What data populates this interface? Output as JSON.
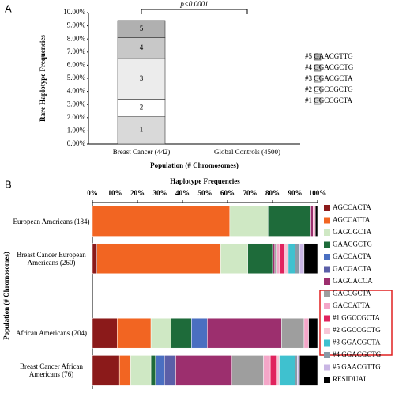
{
  "chart_data": [
    {
      "type": "stacked_bar",
      "panel": "A",
      "ylabel": "Rare Haplotype Frequencies",
      "xlabel": "Population (# Chromosomes)",
      "annotation": "p<0.0001",
      "categories": [
        "Breast Cancer (442)",
        "Global Controls (4500)"
      ],
      "ylim": [
        0,
        10
      ],
      "yticks": [
        {
          "value": 0,
          "label": "0.00%"
        },
        {
          "value": 1,
          "label": "1.00%"
        },
        {
          "value": 2,
          "label": "2.00%"
        },
        {
          "value": 3,
          "label": "3.00%"
        },
        {
          "value": 4,
          "label": "4.00%"
        },
        {
          "value": 5,
          "label": "5.00%"
        },
        {
          "value": 6,
          "label": "6.00%"
        },
        {
          "value": 7,
          "label": "7.00%"
        },
        {
          "value": 8,
          "label": "8.00%"
        },
        {
          "value": 9,
          "label": "9.00%"
        },
        {
          "value": 10,
          "label": "10.00%"
        }
      ],
      "series": [
        {
          "name": "#1 GGCCGCTA",
          "label": "1",
          "color": "#d9d9d9",
          "values": [
            2.1,
            0
          ]
        },
        {
          "name": "#2 GGCCGCTG",
          "label": "2",
          "color": "#ffffff",
          "values": [
            1.3,
            0
          ]
        },
        {
          "name": "#3 GGACGCTA",
          "label": "3",
          "color": "#ececec",
          "values": [
            3.1,
            0
          ]
        },
        {
          "name": "#4 GGACGCTG",
          "label": "4",
          "color": "#c8c8c8",
          "values": [
            1.6,
            0
          ]
        },
        {
          "name": "#5 GAACGTTG",
          "label": "5",
          "color": "#b0b0b0",
          "values": [
            1.3,
            0
          ]
        }
      ]
    },
    {
      "type": "stacked_hbar",
      "panel": "B",
      "title": "Haplotype Frequencies",
      "ylabel": "Population (# Chromosomes)",
      "categories": [
        "European Americans (184)",
        "Breast Cancer European Americans (260)",
        null,
        "African Americans (204)",
        "Breast Cancer African Americans (76)"
      ],
      "xlim": [
        0,
        100
      ],
      "xticks": [
        {
          "value": 0,
          "label": "0%"
        },
        {
          "value": 10,
          "label": "10%"
        },
        {
          "value": 20,
          "label": "20%"
        },
        {
          "value": 30,
          "label": "30%"
        },
        {
          "value": 40,
          "label": "40%"
        },
        {
          "value": 50,
          "label": "50%"
        },
        {
          "value": 60,
          "label": "60%"
        },
        {
          "value": 70,
          "label": "70%"
        },
        {
          "value": 80,
          "label": "80%"
        },
        {
          "value": 90,
          "label": "90%"
        },
        {
          "value": 100,
          "label": "100%"
        }
      ],
      "series": [
        {
          "name": "AGCCACTA",
          "color": "#8b1a1a",
          "values": [
            0,
            2,
            null,
            11,
            12
          ]
        },
        {
          "name": "AGCCATTA",
          "color": "#f26522",
          "values": [
            61,
            55,
            null,
            15,
            5
          ]
        },
        {
          "name": "GAGCGCTA",
          "color": "#cfe8c4",
          "values": [
            17,
            12,
            null,
            9,
            9
          ]
        },
        {
          "name": "GAACGCTG",
          "color": "#1e6b3a",
          "values": [
            19,
            11,
            null,
            9,
            2
          ]
        },
        {
          "name": "GACCACTA",
          "color": "#4a6fc1",
          "values": [
            0,
            0,
            null,
            7,
            4
          ]
        },
        {
          "name": "GACGACTA",
          "color": "#5b5fa8",
          "values": [
            0,
            0,
            null,
            0,
            5
          ]
        },
        {
          "name": "GAGCACCA",
          "color": "#9c2f6e",
          "values": [
            1,
            1,
            null,
            33,
            25
          ]
        },
        {
          "name": "GACCGCTA",
          "color": "#9e9e9e",
          "values": [
            0,
            1,
            null,
            10,
            14
          ]
        },
        {
          "name": "GACCATTA",
          "color": "#f4a6c8",
          "values": [
            1,
            1,
            null,
            2,
            3
          ]
        },
        {
          "name": "#1 GGCCGCTA",
          "color": "#e0245e",
          "values": [
            0,
            2,
            null,
            0,
            3
          ]
        },
        {
          "name": "#2 GGCCGCTG",
          "color": "#f7c6d6",
          "values": [
            0,
            2,
            null,
            0,
            1
          ]
        },
        {
          "name": "#3 GGACGCTA",
          "color": "#3fc1cf",
          "values": [
            0,
            3,
            null,
            0,
            7
          ]
        },
        {
          "name": "#4 GGACGCTG",
          "color": "#8a9aa6",
          "values": [
            0,
            2,
            null,
            0,
            1
          ]
        },
        {
          "name": "#5 GAACGTTG",
          "color": "#c9b6e4",
          "values": [
            0,
            2,
            null,
            0,
            1
          ]
        },
        {
          "name": "RESIDUAL",
          "color": "#000000",
          "values": [
            1,
            6,
            null,
            4,
            8
          ]
        }
      ]
    }
  ]
}
